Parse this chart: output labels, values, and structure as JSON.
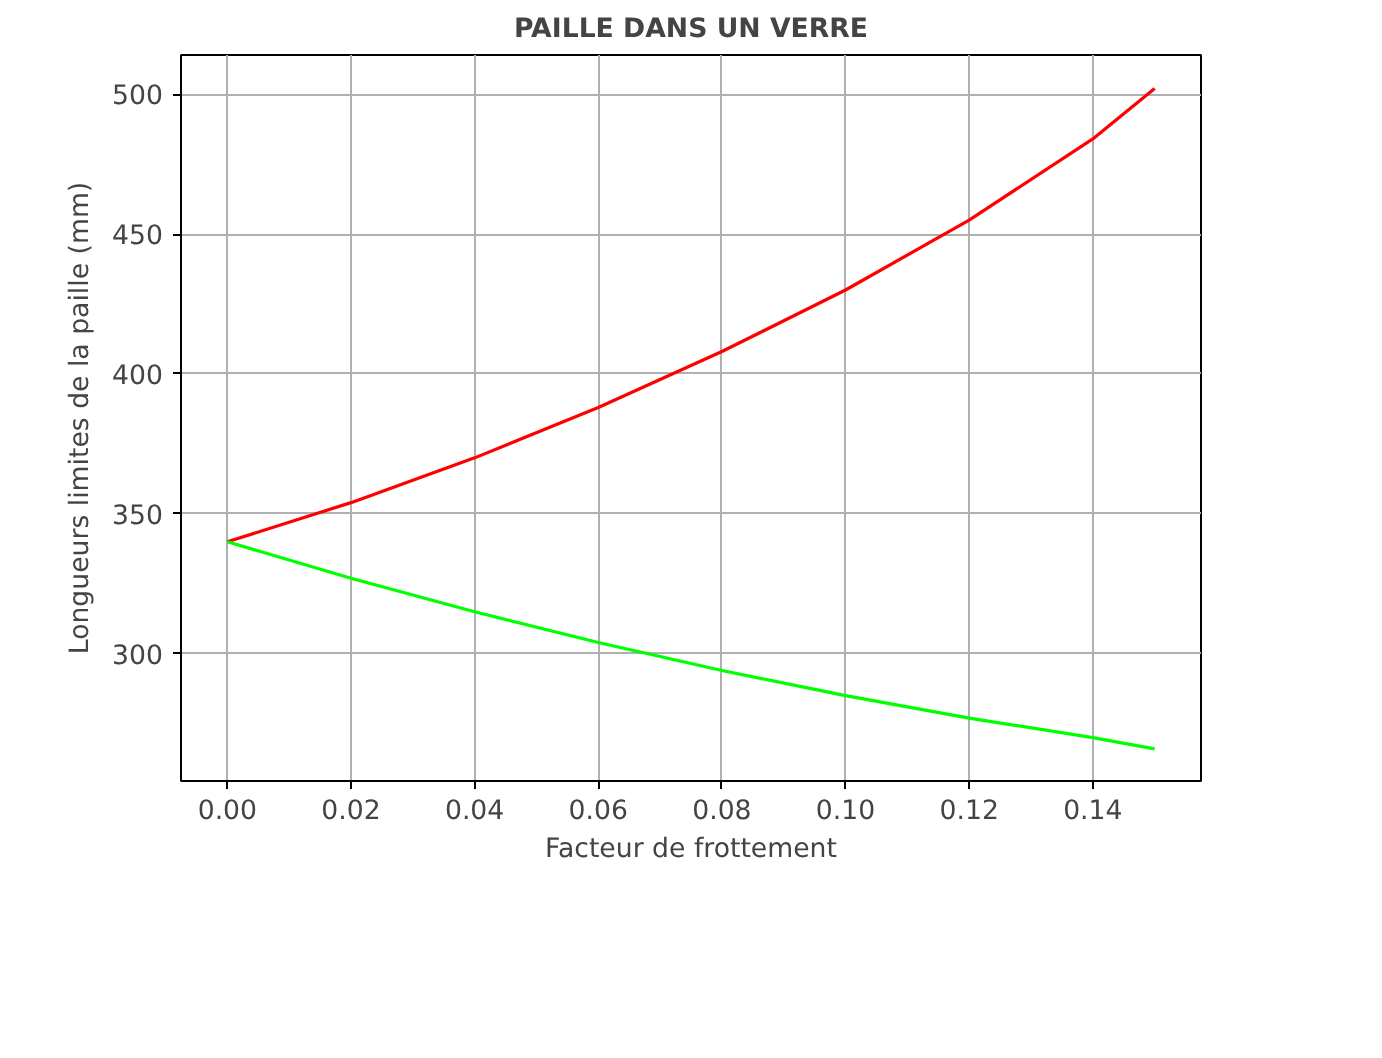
{
  "chart_data": {
    "type": "line",
    "title": "PAILLE DANS UN VERRE",
    "xlabel": "Facteur de frottement",
    "ylabel": "Longueurs limites de la paille (mm)",
    "x": [
      0,
      0.02,
      0.04,
      0.06,
      0.08,
      0.1,
      0.12,
      0.14,
      0.15
    ],
    "series": [
      {
        "color": "#ff0000",
        "values": [
          340,
          354,
          370,
          388,
          408,
          430,
          455,
          484,
          502
        ]
      },
      {
        "color": "#00ff00",
        "values": [
          340,
          327,
          315,
          304,
          294,
          285,
          277,
          270,
          266
        ]
      }
    ],
    "xlim": [
      -0.0075,
      0.1575
    ],
    "ylim": [
      254.5,
      514
    ],
    "xticks": [
      {
        "value": 0,
        "label": "0.00"
      },
      {
        "value": 0.02,
        "label": "0.02"
      },
      {
        "value": 0.04,
        "label": "0.04"
      },
      {
        "value": 0.06,
        "label": "0.06"
      },
      {
        "value": 0.08,
        "label": "0.08"
      },
      {
        "value": 0.1,
        "label": "0.10"
      },
      {
        "value": 0.12,
        "label": "0.12"
      },
      {
        "value": 0.14,
        "label": "0.14"
      }
    ],
    "yticks": [
      300,
      350,
      400,
      450,
      500
    ],
    "grid": true,
    "line_style": "solid",
    "marker": "none"
  }
}
